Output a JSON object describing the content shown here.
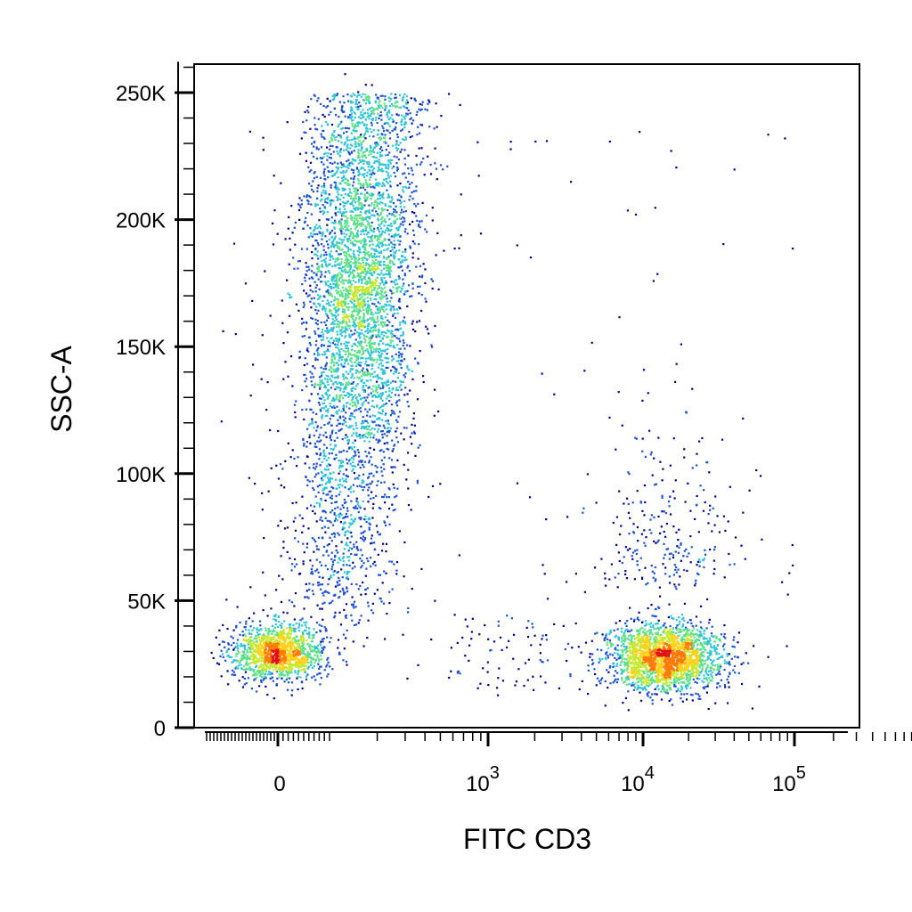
{
  "chart_data": {
    "type": "scatter",
    "subtype": "flow-cytometry-density-dot-plot",
    "xlabel": "FITC  CD3",
    "ylabel": "SSC-A",
    "x_scale": "biexponential (logicle)",
    "y_scale": "linear",
    "ylim": [
      0,
      262144
    ],
    "y_ticks": [
      {
        "value": 0,
        "label": "0"
      },
      {
        "value": 50000,
        "label": "50K"
      },
      {
        "value": 100000,
        "label": "100K"
      },
      {
        "value": 150000,
        "label": "150K"
      },
      {
        "value": 200000,
        "label": "200K"
      },
      {
        "value": 250000,
        "label": "250K"
      }
    ],
    "x_ticks": [
      {
        "value": 0,
        "base": "0",
        "exp": ""
      },
      {
        "value": 1000,
        "base": "10",
        "exp": "3"
      },
      {
        "value": 10000,
        "base": "10",
        "exp": "4"
      },
      {
        "value": 100000,
        "base": "10",
        "exp": "5"
      }
    ],
    "grid": false,
    "colormap": [
      "#00008b",
      "#1a4fd6",
      "#2ec4d6",
      "#5ee08a",
      "#c8e830",
      "#ffd21a",
      "#ff7a00",
      "#e01010"
    ],
    "populations": [
      {
        "name": "CD3-negative low-SSC cluster",
        "x_center": 150,
        "y_center": 30000,
        "density": "high"
      },
      {
        "name": "CD3-negative high-SSC cluster",
        "x_center": 300,
        "y_center": 160000,
        "density": "medium"
      },
      {
        "name": "CD3-positive cluster",
        "x_center": 14000,
        "y_center": 28000,
        "density": "very high"
      }
    ]
  }
}
